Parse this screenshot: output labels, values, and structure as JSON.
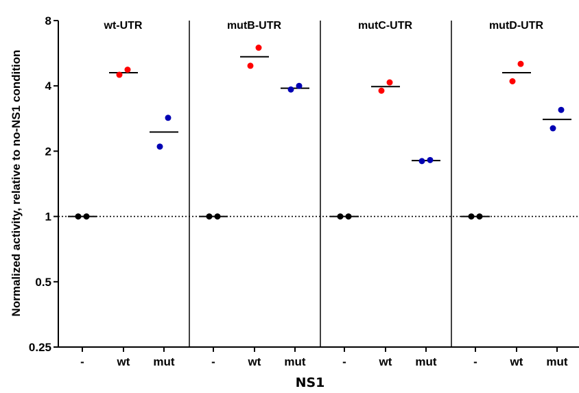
{
  "chart_data": {
    "type": "scatter",
    "ylabel": "Normalized activity, relative to no-NS1 condition",
    "xlabel": "NS1",
    "y_scale": "log2",
    "ylim": [
      0.25,
      8
    ],
    "y_ticks": [
      {
        "value": 0.25,
        "label": "0.25"
      },
      {
        "value": 0.5,
        "label": "0.5"
      },
      {
        "value": 1,
        "label": "1"
      },
      {
        "value": 2,
        "label": "2"
      },
      {
        "value": 4,
        "label": "4"
      },
      {
        "value": 8,
        "label": "8"
      }
    ],
    "categories": [
      "-",
      "wt",
      "mut"
    ],
    "reference_line": 1,
    "colors": {
      "-": "#000000",
      "wt": "#ff0000",
      "mut": "#0000b3"
    },
    "panels": [
      {
        "title": "wt-UTR",
        "groups": [
          {
            "category": "-",
            "points": [
              1.0,
              1.0
            ],
            "mean": 1.0
          },
          {
            "category": "wt",
            "points": [
              4.5,
              4.75
            ],
            "mean": 4.6
          },
          {
            "category": "mut",
            "points": [
              2.1,
              2.85
            ],
            "mean": 2.45
          }
        ]
      },
      {
        "title": "mutB-UTR",
        "groups": [
          {
            "category": "-",
            "points": [
              1.0,
              1.0
            ],
            "mean": 1.0
          },
          {
            "category": "wt",
            "points": [
              4.95,
              6.0
            ],
            "mean": 5.45
          },
          {
            "category": "mut",
            "points": [
              3.85,
              4.0
            ],
            "mean": 3.9
          }
        ]
      },
      {
        "title": "mutC-UTR",
        "groups": [
          {
            "category": "-",
            "points": [
              1.0,
              1.0
            ],
            "mean": 1.0
          },
          {
            "category": "wt",
            "points": [
              3.8,
              4.15
            ],
            "mean": 3.97
          },
          {
            "category": "mut",
            "points": [
              1.8,
              1.82
            ],
            "mean": 1.81
          }
        ]
      },
      {
        "title": "mutD-UTR",
        "groups": [
          {
            "category": "-",
            "points": [
              1.0,
              1.0
            ],
            "mean": 1.0
          },
          {
            "category": "wt",
            "points": [
              4.2,
              5.05
            ],
            "mean": 4.6
          },
          {
            "category": "mut",
            "points": [
              2.55,
              3.1
            ],
            "mean": 2.8
          }
        ]
      }
    ]
  }
}
